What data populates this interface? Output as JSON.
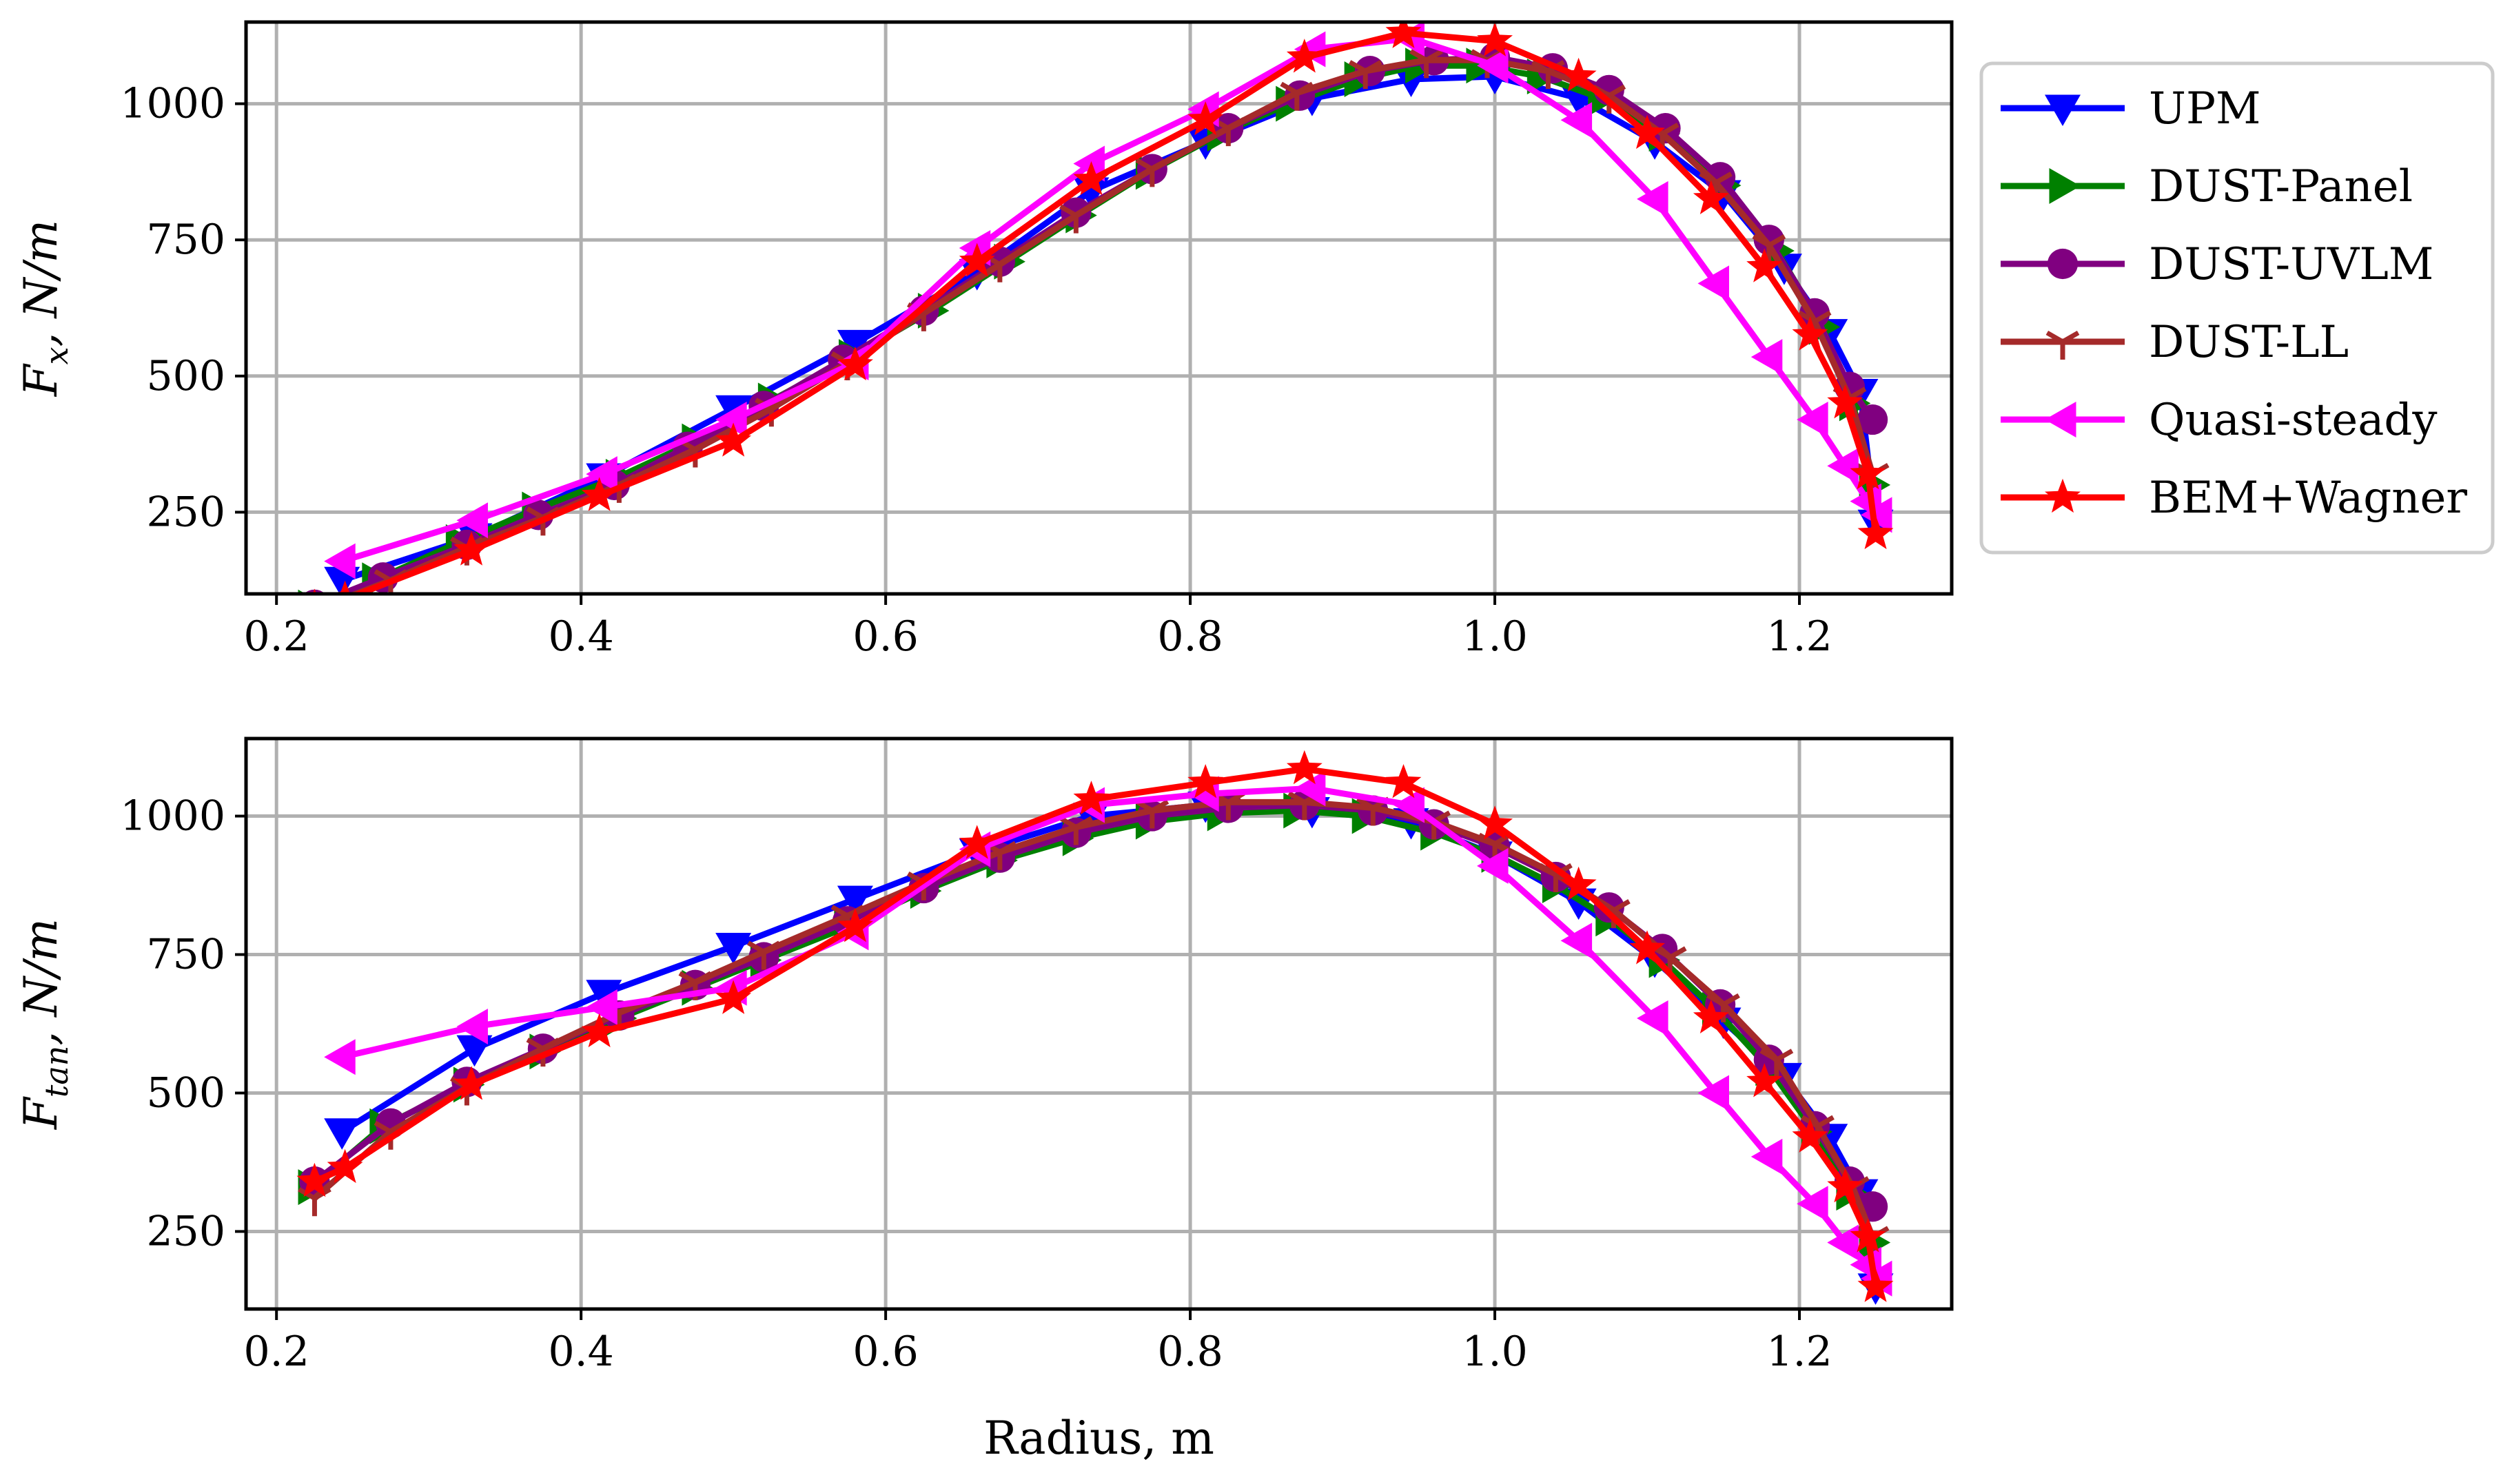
{
  "chart_data": [
    {
      "type": "line",
      "ylabel_main": "F",
      "ylabel_sub": "x",
      "ylabel_units": ",  N/m",
      "xlabel": "",
      "xlim": [
        0.18,
        1.3
      ],
      "ylim": [
        100,
        1150
      ],
      "xticks": [
        0.2,
        0.4,
        0.6,
        0.8,
        1.0,
        1.2
      ],
      "xtick_labels": [
        "0.2",
        "0.4",
        "0.6",
        "0.8",
        "1.0",
        "1.2"
      ],
      "yticks": [
        250,
        500,
        750,
        1000
      ],
      "ytick_labels": [
        "250",
        "500",
        "750",
        "1000"
      ],
      "grid": true,
      "legend_location": "outside-right",
      "series": [
        {
          "name": "UPM",
          "color": "#0000ff",
          "marker": "triangle-down",
          "x": [
            0.243,
            0.33,
            0.415,
            0.5,
            0.58,
            0.66,
            0.735,
            0.81,
            0.88,
            0.945,
            1.0,
            1.055,
            1.105,
            1.15,
            1.19,
            1.22,
            1.24,
            1.25
          ],
          "y": [
            125,
            205,
            315,
            440,
            560,
            690,
            840,
            930,
            1010,
            1045,
            1050,
            1010,
            930,
            835,
            700,
            580,
            470,
            230
          ]
        },
        {
          "name": "DUST-Panel",
          "color": "#008000",
          "marker": "triangle-right",
          "x": [
            0.223,
            0.265,
            0.32,
            0.37,
            0.425,
            0.475,
            0.525,
            0.578,
            0.63,
            0.68,
            0.727,
            0.773,
            0.82,
            0.865,
            0.91,
            0.95,
            0.99,
            1.03,
            1.07,
            1.11,
            1.15,
            1.185,
            1.215,
            1.235,
            1.248
          ],
          "y": [
            75,
            125,
            195,
            255,
            315,
            380,
            455,
            535,
            620,
            710,
            795,
            875,
            945,
            1000,
            1045,
            1070,
            1070,
            1050,
            1010,
            945,
            850,
            730,
            590,
            450,
            300
          ]
        },
        {
          "name": "DUST-UVLM",
          "color": "#800080",
          "marker": "circle",
          "x": [
            0.225,
            0.27,
            0.325,
            0.372,
            0.422,
            0.47,
            0.52,
            0.572,
            0.625,
            0.675,
            0.725,
            0.775,
            0.825,
            0.872,
            0.918,
            0.96,
            1.0,
            1.038,
            1.075,
            1.112,
            1.148,
            1.18,
            1.21,
            1.233,
            1.248
          ],
          "y": [
            80,
            130,
            190,
            245,
            300,
            370,
            445,
            530,
            620,
            710,
            800,
            880,
            955,
            1015,
            1060,
            1080,
            1085,
            1065,
            1025,
            955,
            865,
            750,
            615,
            480,
            420
          ]
        },
        {
          "name": "DUST-LL",
          "color": "#a52a2a",
          "marker": "tri-down",
          "x": [
            0.225,
            0.275,
            0.325,
            0.375,
            0.425,
            0.475,
            0.525,
            0.575,
            0.625,
            0.675,
            0.725,
            0.775,
            0.825,
            0.87,
            0.915,
            0.955,
            0.995,
            1.035,
            1.075,
            1.11,
            1.145,
            1.18,
            1.21,
            1.233,
            1.248
          ],
          "y": [
            70,
            125,
            185,
            240,
            300,
            365,
            440,
            525,
            615,
            705,
            795,
            880,
            955,
            1020,
            1060,
            1080,
            1080,
            1060,
            1015,
            945,
            855,
            740,
            600,
            460,
            320
          ]
        },
        {
          "name": "Quasi-steady",
          "color": "#ff00ff",
          "marker": "triangle-left",
          "x": [
            0.243,
            0.33,
            0.415,
            0.5,
            0.58,
            0.66,
            0.735,
            0.81,
            0.88,
            0.945,
            1.0,
            1.055,
            1.105,
            1.145,
            1.18,
            1.21,
            1.23,
            1.245,
            1.252
          ],
          "y": [
            160,
            235,
            320,
            420,
            525,
            735,
            890,
            990,
            1100,
            1120,
            1070,
            970,
            825,
            670,
            535,
            420,
            335,
            270,
            245
          ]
        },
        {
          "name": "BEM+Wagner",
          "color": "#ff0000",
          "marker": "star",
          "x": [
            0.225,
            0.245,
            0.328,
            0.412,
            0.5,
            0.58,
            0.66,
            0.735,
            0.81,
            0.875,
            0.94,
            1.0,
            1.055,
            1.1,
            1.142,
            1.177,
            1.207,
            1.23,
            1.245,
            1.25
          ],
          "y": [
            75,
            90,
            180,
            280,
            380,
            520,
            710,
            860,
            970,
            1085,
            1130,
            1115,
            1050,
            945,
            825,
            700,
            575,
            450,
            320,
            210
          ]
        }
      ]
    },
    {
      "type": "line",
      "ylabel_main": "F",
      "ylabel_sub": "tan",
      "ylabel_units": ",  N/m",
      "xlabel": "Radius, m",
      "xlim": [
        0.18,
        1.3
      ],
      "ylim": [
        110,
        1140
      ],
      "xticks": [
        0.2,
        0.4,
        0.6,
        0.8,
        1.0,
        1.2
      ],
      "xtick_labels": [
        "0.2",
        "0.4",
        "0.6",
        "0.8",
        "1.0",
        "1.2"
      ],
      "yticks": [
        250,
        500,
        750,
        1000
      ],
      "ytick_labels": [
        "250",
        "500",
        "750",
        "1000"
      ],
      "grid": true,
      "series": [
        {
          "name": "UPM",
          "color": "#0000ff",
          "marker": "triangle-down",
          "x": [
            0.243,
            0.33,
            0.415,
            0.5,
            0.58,
            0.66,
            0.735,
            0.81,
            0.88,
            0.945,
            1.0,
            1.055,
            1.105,
            1.15,
            1.19,
            1.22,
            1.24,
            1.25
          ],
          "y": [
            430,
            580,
            680,
            765,
            850,
            935,
            1000,
            1020,
            1010,
            990,
            930,
            845,
            740,
            630,
            530,
            420,
            320,
            150
          ]
        },
        {
          "name": "DUST-Panel",
          "color": "#008000",
          "marker": "triangle-right",
          "x": [
            0.223,
            0.27,
            0.325,
            0.375,
            0.425,
            0.475,
            0.52,
            0.575,
            0.625,
            0.675,
            0.725,
            0.773,
            0.82,
            0.87,
            0.915,
            0.96,
            1.0,
            1.04,
            1.075,
            1.11,
            1.145,
            1.18,
            1.21,
            1.233,
            1.248
          ],
          "y": [
            330,
            440,
            515,
            575,
            635,
            690,
            740,
            800,
            865,
            920,
            960,
            990,
            1005,
            1010,
            1000,
            970,
            930,
            875,
            815,
            740,
            650,
            545,
            430,
            320,
            230
          ]
        },
        {
          "name": "DUST-UVLM",
          "color": "#800080",
          "marker": "circle",
          "x": [
            0.225,
            0.275,
            0.325,
            0.375,
            0.425,
            0.475,
            0.52,
            0.575,
            0.625,
            0.675,
            0.725,
            0.775,
            0.825,
            0.875,
            0.92,
            0.96,
            1.0,
            1.04,
            1.075,
            1.11,
            1.148,
            1.18,
            1.21,
            1.233,
            1.248
          ],
          "y": [
            340,
            445,
            520,
            580,
            640,
            695,
            745,
            810,
            870,
            925,
            970,
            1000,
            1015,
            1020,
            1010,
            985,
            945,
            890,
            835,
            760,
            660,
            560,
            440,
            340,
            295
          ]
        },
        {
          "name": "DUST-LL",
          "color": "#a52a2a",
          "marker": "tri-down",
          "x": [
            0.225,
            0.275,
            0.325,
            0.375,
            0.425,
            0.475,
            0.52,
            0.575,
            0.625,
            0.675,
            0.725,
            0.775,
            0.825,
            0.875,
            0.92,
            0.96,
            1.0,
            1.04,
            1.078,
            1.115,
            1.15,
            1.185,
            1.212,
            1.235,
            1.248
          ],
          "y": [
            310,
            430,
            510,
            580,
            645,
            700,
            755,
            820,
            880,
            935,
            980,
            1010,
            1025,
            1025,
            1015,
            990,
            950,
            895,
            830,
            745,
            660,
            560,
            440,
            330,
            240
          ]
        },
        {
          "name": "Quasi-steady",
          "color": "#ff00ff",
          "marker": "triangle-left",
          "x": [
            0.243,
            0.33,
            0.415,
            0.5,
            0.58,
            0.66,
            0.735,
            0.81,
            0.88,
            0.945,
            1.0,
            1.055,
            1.105,
            1.145,
            1.18,
            1.21,
            1.23,
            1.245,
            1.252
          ],
          "y": [
            565,
            620,
            655,
            690,
            790,
            940,
            1020,
            1040,
            1050,
            1020,
            910,
            775,
            635,
            500,
            385,
            300,
            230,
            190,
            165
          ]
        },
        {
          "name": "BEM+Wagner",
          "color": "#ff0000",
          "marker": "star",
          "x": [
            0.225,
            0.245,
            0.328,
            0.412,
            0.5,
            0.58,
            0.66,
            0.735,
            0.81,
            0.875,
            0.94,
            1.0,
            1.055,
            1.1,
            1.142,
            1.177,
            1.207,
            1.23,
            1.245,
            1.25
          ],
          "y": [
            340,
            365,
            515,
            610,
            670,
            800,
            950,
            1030,
            1060,
            1085,
            1060,
            985,
            875,
            760,
            635,
            520,
            420,
            330,
            240,
            150
          ]
        }
      ]
    }
  ],
  "legend": {
    "entries": [
      "UPM",
      "DUST-Panel",
      "DUST-UVLM",
      "DUST-LL",
      "Quasi-steady",
      "BEM+Wagner"
    ]
  }
}
